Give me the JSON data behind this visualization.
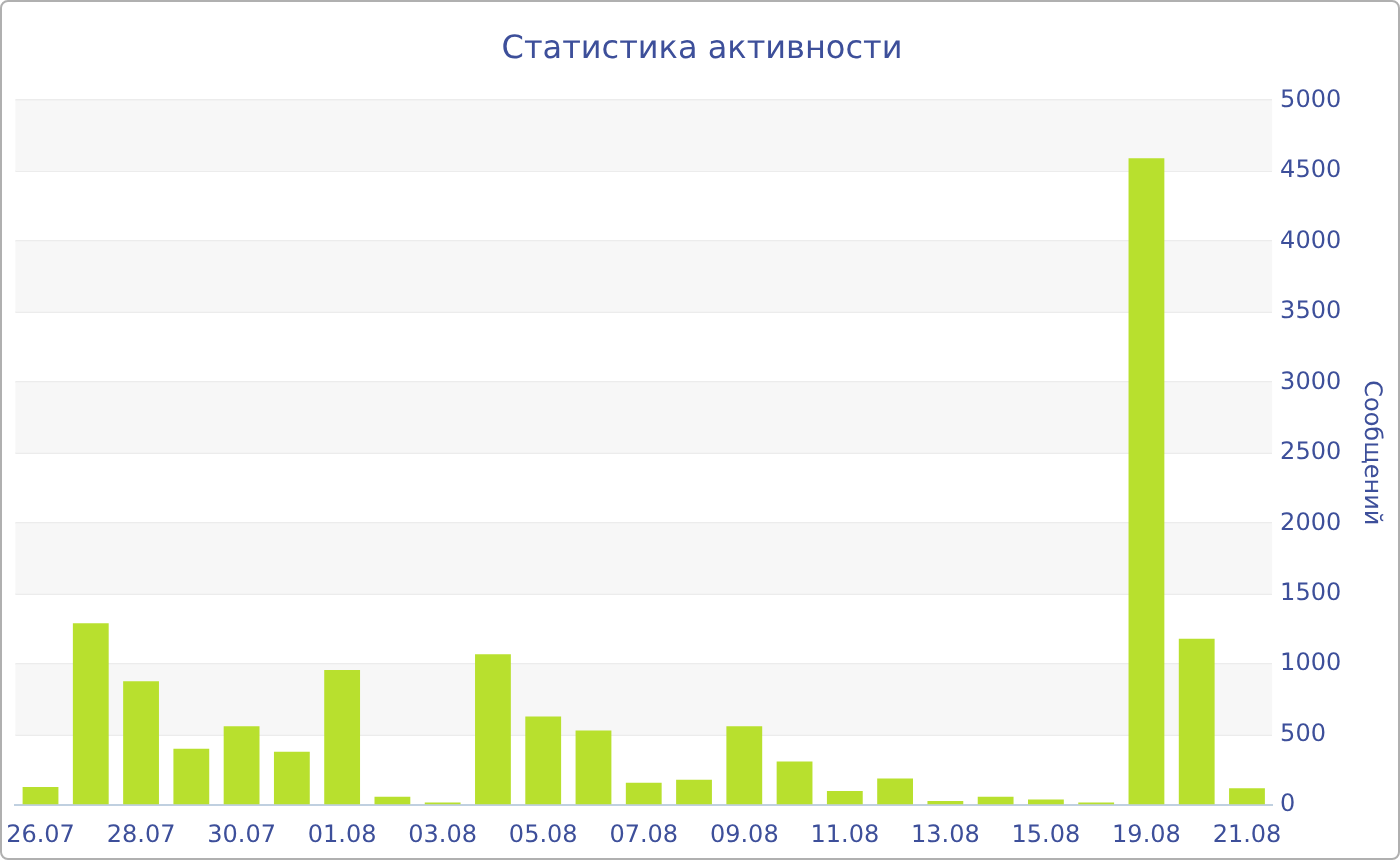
{
  "chart_data": {
    "type": "bar",
    "title": "Статистика активности",
    "ylabel": "Сообщений",
    "categories": [
      "26.07",
      null,
      "28.07",
      null,
      "30.07",
      null,
      "01.08",
      null,
      "03.08",
      null,
      "05.08",
      null,
      "07.08",
      null,
      "09.08",
      null,
      "11.08",
      null,
      "13.08",
      null,
      "15.08",
      null,
      "19.08",
      null,
      "21.08"
    ],
    "values": [
      130,
      1290,
      880,
      400,
      560,
      380,
      960,
      60,
      20,
      1070,
      630,
      530,
      160,
      180,
      560,
      310,
      100,
      190,
      30,
      60,
      40,
      20,
      4590,
      1180,
      120
    ],
    "color": "#b8e02e",
    "ylim": [
      0,
      5000
    ],
    "yticks": [
      0,
      500,
      1000,
      1500,
      2000,
      2500,
      3000,
      3500,
      4000,
      4500,
      5000
    ],
    "grid": "y",
    "legend": false
  }
}
